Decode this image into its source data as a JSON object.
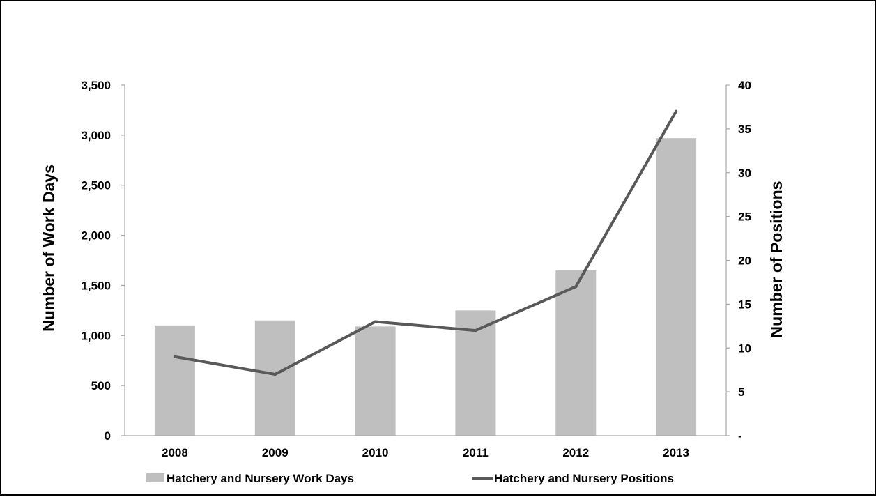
{
  "chart_data": {
    "type": "bar",
    "categories": [
      "2008",
      "2009",
      "2010",
      "2011",
      "2012",
      "2013"
    ],
    "series": [
      {
        "name": "Hatchery and Nursery Work Days",
        "type": "bar",
        "axis": "left",
        "color": "#bfbfbf",
        "values": [
          1100,
          1150,
          1090,
          1250,
          1650,
          2970
        ]
      },
      {
        "name": "Hatchery and Nursery Positions",
        "type": "line",
        "axis": "right",
        "color": "#595959",
        "values": [
          9,
          7,
          13,
          12,
          17,
          37
        ]
      }
    ],
    "ylabel": "Number of  Work Days",
    "y2label": "Number of Positions",
    "ylim": [
      0,
      3500
    ],
    "y2lim": [
      0,
      40
    ],
    "yticks": [
      "0",
      "500",
      "1,000",
      "1,500",
      "2,000",
      "2,500",
      "3,000",
      "3,500"
    ],
    "y2ticks": [
      "-",
      "5",
      "10",
      "15",
      "20",
      "25",
      "30",
      "35",
      "40"
    ],
    "grid": false,
    "legend": "bottom"
  }
}
